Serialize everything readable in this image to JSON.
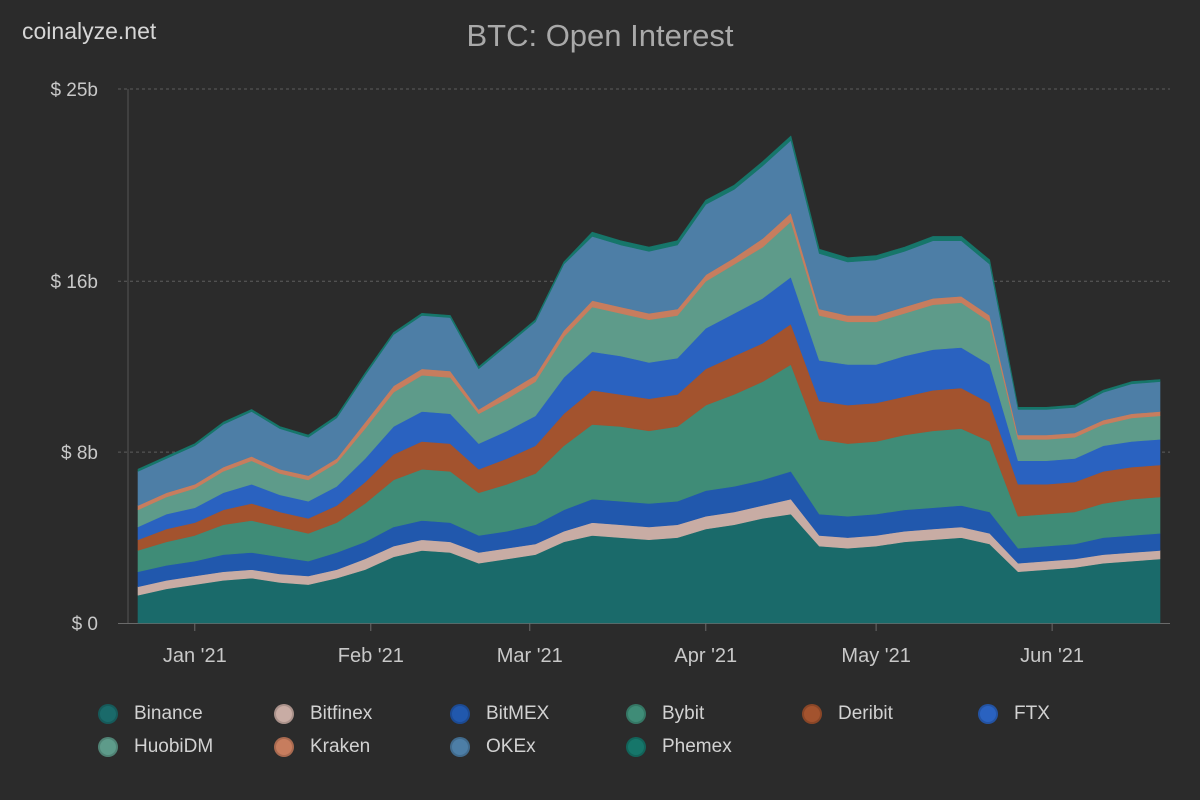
{
  "watermark": "coinalyze.net",
  "chart_data": {
    "type": "area",
    "title": "BTC: Open Interest",
    "stacked": true,
    "ylim": [
      0,
      25
    ],
    "y_ticks": [
      {
        "value": 0,
        "label": "$ 0"
      },
      {
        "value": 8,
        "label": "$ 8b"
      },
      {
        "value": 16,
        "label": "$ 16b"
      },
      {
        "value": 25,
        "label": "$ 25b"
      }
    ],
    "x_ticks": [
      {
        "x": 10,
        "label": "Jan '21"
      },
      {
        "x": 41,
        "label": "Feb '21"
      },
      {
        "x": 69,
        "label": "Mar '21"
      },
      {
        "x": 100,
        "label": "Apr '21"
      },
      {
        "x": 130,
        "label": "May '21"
      },
      {
        "x": 161,
        "label": "Jun '21"
      }
    ],
    "x": [
      0,
      5,
      10,
      15,
      20,
      25,
      30,
      35,
      40,
      45,
      50,
      55,
      60,
      65,
      70,
      75,
      80,
      85,
      90,
      95,
      100,
      105,
      110,
      115,
      120,
      125,
      130,
      135,
      140,
      145,
      150,
      155,
      160,
      165,
      170,
      175,
      180
    ],
    "grid": true,
    "legend_position": "bottom",
    "series": [
      {
        "name": "Binance",
        "color": "#1a6a6a",
        "values": [
          1.3,
          1.6,
          1.8,
          2.0,
          2.1,
          1.9,
          1.8,
          2.1,
          2.5,
          3.1,
          3.4,
          3.3,
          2.8,
          3.0,
          3.2,
          3.8,
          4.1,
          4.0,
          3.9,
          4.0,
          4.4,
          4.6,
          4.9,
          5.1,
          3.6,
          3.5,
          3.6,
          3.8,
          3.9,
          4.0,
          3.7,
          2.4,
          2.5,
          2.6,
          2.8,
          2.9,
          3.0
        ]
      },
      {
        "name": "Bitfinex",
        "color": "#c8aca4",
        "values": [
          0.4,
          0.4,
          0.4,
          0.4,
          0.4,
          0.4,
          0.4,
          0.4,
          0.5,
          0.5,
          0.5,
          0.5,
          0.5,
          0.5,
          0.5,
          0.5,
          0.6,
          0.6,
          0.6,
          0.6,
          0.6,
          0.6,
          0.6,
          0.7,
          0.5,
          0.5,
          0.5,
          0.5,
          0.5,
          0.5,
          0.5,
          0.4,
          0.4,
          0.4,
          0.4,
          0.4,
          0.4
        ]
      },
      {
        "name": "BitMEX",
        "color": "#2158ad",
        "values": [
          0.7,
          0.7,
          0.7,
          0.8,
          0.8,
          0.8,
          0.7,
          0.8,
          0.8,
          0.9,
          0.9,
          0.9,
          0.8,
          0.8,
          0.9,
          1.0,
          1.1,
          1.1,
          1.1,
          1.1,
          1.2,
          1.2,
          1.2,
          1.3,
          1.0,
          1.0,
          1.0,
          1.0,
          1.0,
          1.0,
          1.0,
          0.7,
          0.7,
          0.7,
          0.8,
          0.8,
          0.8
        ]
      },
      {
        "name": "Bybit",
        "color": "#3f8c77",
        "values": [
          1.0,
          1.1,
          1.2,
          1.4,
          1.5,
          1.4,
          1.3,
          1.4,
          1.8,
          2.2,
          2.4,
          2.4,
          2.0,
          2.2,
          2.4,
          3.0,
          3.5,
          3.5,
          3.4,
          3.5,
          4.0,
          4.3,
          4.6,
          5.0,
          3.5,
          3.4,
          3.4,
          3.5,
          3.6,
          3.6,
          3.3,
          1.5,
          1.5,
          1.5,
          1.6,
          1.7,
          1.7
        ]
      },
      {
        "name": "Deribit",
        "color": "#a3532e",
        "values": [
          0.5,
          0.6,
          0.6,
          0.7,
          0.8,
          0.7,
          0.7,
          0.8,
          1.0,
          1.2,
          1.3,
          1.3,
          1.1,
          1.2,
          1.3,
          1.5,
          1.6,
          1.5,
          1.5,
          1.5,
          1.7,
          1.8,
          1.8,
          1.9,
          1.8,
          1.8,
          1.8,
          1.8,
          1.9,
          1.9,
          1.8,
          1.5,
          1.4,
          1.4,
          1.5,
          1.5,
          1.5
        ]
      },
      {
        "name": "FTX",
        "color": "#2a62c0",
        "values": [
          0.6,
          0.7,
          0.7,
          0.8,
          0.9,
          0.8,
          0.8,
          0.9,
          1.1,
          1.3,
          1.4,
          1.4,
          1.2,
          1.3,
          1.4,
          1.7,
          1.8,
          1.8,
          1.7,
          1.7,
          1.9,
          2.0,
          2.1,
          2.2,
          1.9,
          1.9,
          1.8,
          1.9,
          1.9,
          1.9,
          1.8,
          1.1,
          1.1,
          1.1,
          1.2,
          1.2,
          1.2
        ]
      },
      {
        "name": "HuobiDM",
        "color": "#5e9b8a",
        "values": [
          0.8,
          0.8,
          0.9,
          1.0,
          1.1,
          1.0,
          1.0,
          1.1,
          1.4,
          1.6,
          1.7,
          1.7,
          1.4,
          1.5,
          1.6,
          1.9,
          2.1,
          2.0,
          2.0,
          2.0,
          2.2,
          2.3,
          2.4,
          2.6,
          2.1,
          2.0,
          2.0,
          2.0,
          2.1,
          2.1,
          2.0,
          1.0,
          1.0,
          1.0,
          1.0,
          1.1,
          1.1
        ]
      },
      {
        "name": "Kraken",
        "color": "#c77d5e",
        "values": [
          0.2,
          0.2,
          0.2,
          0.2,
          0.2,
          0.2,
          0.2,
          0.2,
          0.3,
          0.3,
          0.3,
          0.3,
          0.2,
          0.3,
          0.3,
          0.3,
          0.3,
          0.3,
          0.3,
          0.3,
          0.3,
          0.3,
          0.4,
          0.4,
          0.3,
          0.3,
          0.3,
          0.3,
          0.3,
          0.3,
          0.3,
          0.2,
          0.2,
          0.2,
          0.2,
          0.2,
          0.2
        ]
      },
      {
        "name": "OKEx",
        "color": "#4d7ea6",
        "values": [
          1.6,
          1.6,
          1.8,
          2.0,
          2.1,
          1.9,
          1.8,
          1.9,
          2.2,
          2.4,
          2.5,
          2.5,
          1.9,
          2.2,
          2.5,
          3.1,
          3.0,
          2.9,
          2.9,
          3.0,
          3.3,
          3.2,
          3.4,
          3.4,
          2.6,
          2.5,
          2.6,
          2.6,
          2.7,
          2.6,
          2.4,
          1.2,
          1.2,
          1.2,
          1.3,
          1.4,
          1.4
        ]
      },
      {
        "name": "Phemex",
        "color": "#16766a",
        "values": [
          0.1,
          0.1,
          0.1,
          0.1,
          0.1,
          0.1,
          0.1,
          0.1,
          0.1,
          0.1,
          0.1,
          0.1,
          0.1,
          0.1,
          0.1,
          0.1,
          0.2,
          0.2,
          0.2,
          0.2,
          0.2,
          0.2,
          0.2,
          0.2,
          0.2,
          0.2,
          0.2,
          0.2,
          0.2,
          0.2,
          0.2,
          0.1,
          0.1,
          0.1,
          0.1,
          0.1,
          0.1
        ]
      }
    ]
  }
}
